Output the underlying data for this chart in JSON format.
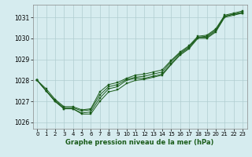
{
  "title": "Graphe pression niveau de la mer (hPa)",
  "bg_color": "#d6ecef",
  "grid_color": "#b0cdd0",
  "line_color": "#1a5c1a",
  "xlim": [
    -0.5,
    23.5
  ],
  "ylim": [
    1025.7,
    1031.6
  ],
  "yticks": [
    1026,
    1027,
    1028,
    1029,
    1030,
    1031
  ],
  "xticks": [
    0,
    1,
    2,
    3,
    4,
    5,
    6,
    7,
    8,
    9,
    10,
    11,
    12,
    13,
    14,
    15,
    16,
    17,
    18,
    19,
    20,
    21,
    22,
    23
  ],
  "lines": [
    [
      1028.0,
      1027.5,
      1027.0,
      1026.65,
      1026.65,
      1026.4,
      1026.4,
      1027.0,
      1027.45,
      1027.55,
      1027.85,
      1028.0,
      1028.05,
      1028.15,
      1028.25,
      1028.75,
      1029.2,
      1029.5,
      1030.0,
      1030.0,
      1030.3,
      1031.0,
      1031.1,
      1031.2
    ],
    [
      1028.0,
      1027.5,
      1027.0,
      1026.65,
      1026.65,
      1026.45,
      1026.5,
      1027.15,
      1027.6,
      1027.7,
      1028.0,
      1028.1,
      1028.1,
      1028.2,
      1028.3,
      1028.8,
      1029.25,
      1029.55,
      1030.05,
      1030.05,
      1030.35,
      1031.05,
      1031.15,
      1031.2
    ],
    [
      1028.0,
      1027.5,
      1027.05,
      1026.7,
      1026.7,
      1026.55,
      1026.6,
      1027.3,
      1027.7,
      1027.8,
      1028.05,
      1028.15,
      1028.2,
      1028.3,
      1028.4,
      1028.9,
      1029.3,
      1029.6,
      1030.05,
      1030.1,
      1030.4,
      1031.05,
      1031.15,
      1031.25
    ],
    [
      1028.0,
      1027.6,
      1027.1,
      1026.75,
      1026.75,
      1026.6,
      1026.65,
      1027.45,
      1027.8,
      1027.9,
      1028.1,
      1028.25,
      1028.3,
      1028.4,
      1028.5,
      1028.95,
      1029.35,
      1029.65,
      1030.1,
      1030.15,
      1030.45,
      1031.1,
      1031.2,
      1031.3
    ]
  ]
}
